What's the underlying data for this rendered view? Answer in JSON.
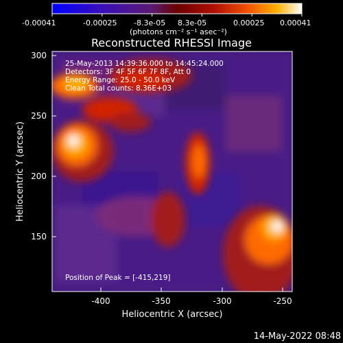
{
  "colorbar": {
    "tick_labels": [
      "-0.00041",
      "-0.00025",
      "-8.3e-05",
      "8.3e-05",
      "0.00025",
      "0.00041"
    ],
    "unit_label": "(photons cm⁻² s⁻¹ asec⁻²)",
    "range": [
      -0.00041,
      0.00041
    ]
  },
  "image": {
    "title": "Reconstructed RHESSI Image",
    "info_lines": [
      "25-May-2013 14:39:36.000 to 14:45:24.000",
      "Detectors: 3F 4F 5F 6F 7F 8F, Att 0",
      "Energy Range: 25.0 - 50.0 keV",
      "Clean    Total counts: 8.36E+03"
    ],
    "peak_text": "Position of Peak = [-415,219]",
    "peak": [
      -415,
      219
    ],
    "xlabel": "Heliocentric X (arcsec)",
    "ylabel": "Heliocentric Y (arcsec)",
    "xlim": [
      -445,
      -248
    ],
    "ylim": [
      105,
      302
    ],
    "x_ticks": [
      "-400",
      "-350",
      "-300",
      "-250"
    ],
    "x_tick_values": [
      -400,
      -350,
      -300,
      -250
    ],
    "y_ticks": [
      "150",
      "200",
      "250",
      "300"
    ],
    "y_tick_values": [
      150,
      200,
      250,
      300
    ],
    "colormap": [
      "#0000ff",
      "#2a00c8",
      "#5a1ea6",
      "#7a2a7a",
      "#a11d1d",
      "#d02000",
      "#ff6a00",
      "#ffb000",
      "#ffffff"
    ]
  },
  "footer": {
    "timestamp": "14-May-2022 08:48"
  }
}
